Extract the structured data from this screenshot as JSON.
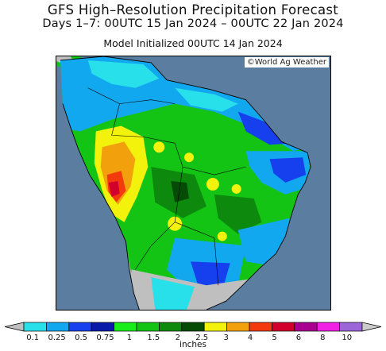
{
  "header": {
    "title": "GFS High–Resolution Precipitation Forecast",
    "valid_period": "Days 1–7: 00UTC 15 Jan 2024 – 00UTC 22 Jan 2024",
    "initialized": "Model Initialized 00UTC 14 Jan 2024"
  },
  "map": {
    "credit": "©World Ag Weather",
    "ocean_color": "#5b7ea0",
    "no_data_color": "#bfbfbf",
    "border_color": "#000000"
  },
  "legend": {
    "units": "inches",
    "colors": [
      "#bfbfbf",
      "#27e0ea",
      "#12a8f0",
      "#1640ee",
      "#0a1aa8",
      "#1aee1a",
      "#14c414",
      "#0d8a0d",
      "#054a05",
      "#f2f20c",
      "#f2a10c",
      "#f23a0c",
      "#d2002c",
      "#aa0090",
      "#f020e4",
      "#9a66d8",
      "#cccccc"
    ],
    "tick_labels": [
      "0.1",
      "0.25",
      "0.5",
      "0.75",
      "1",
      "1.5",
      "2",
      "2.5",
      "3",
      "4",
      "5",
      "6",
      "8",
      "10"
    ]
  }
}
